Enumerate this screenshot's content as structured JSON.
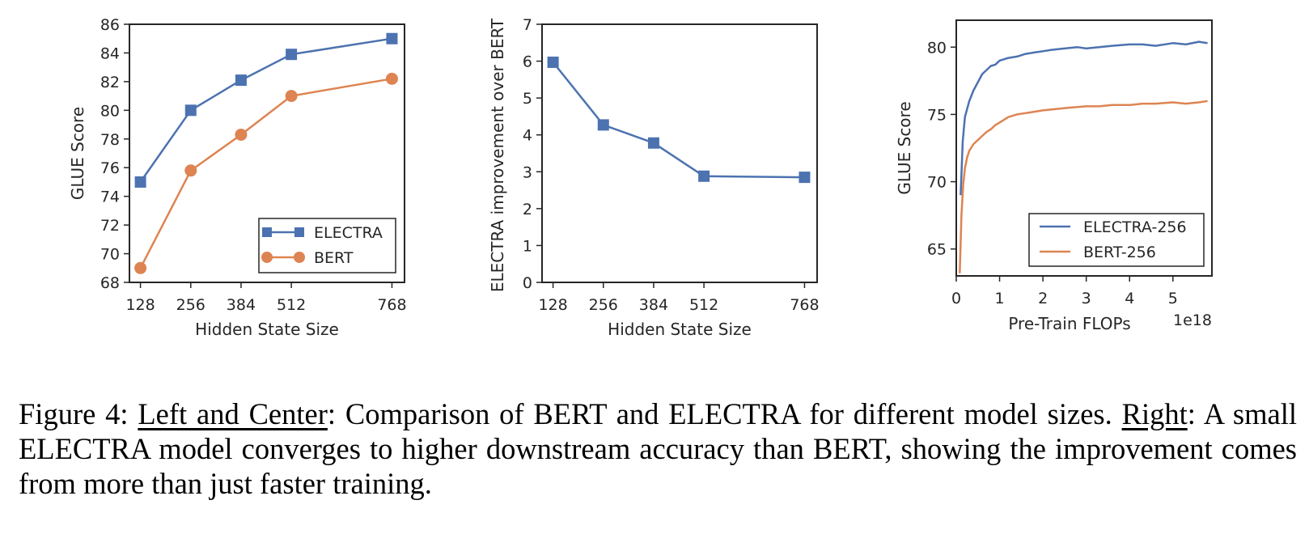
{
  "chart_data": [
    {
      "type": "line",
      "xlabel": "Hidden State Size",
      "ylabel": "GLUE Score",
      "x": [
        128,
        256,
        384,
        512,
        768
      ],
      "xticks": [
        "128",
        "256",
        "384",
        "512",
        "768"
      ],
      "xlim": [
        100,
        800
      ],
      "ylim": [
        68,
        86
      ],
      "yticks": [
        "68",
        "70",
        "72",
        "74",
        "76",
        "78",
        "80",
        "82",
        "84",
        "86"
      ],
      "legend_position": "lower-right",
      "series": [
        {
          "name": "ELECTRA",
          "color": "#4c72b0",
          "marker": "square",
          "values": [
            75.0,
            80.0,
            82.1,
            83.9,
            85.0
          ]
        },
        {
          "name": "BERT",
          "color": "#dd8452",
          "marker": "circle",
          "values": [
            69.0,
            75.8,
            78.3,
            81.0,
            82.2
          ]
        }
      ]
    },
    {
      "type": "line",
      "xlabel": "Hidden State Size",
      "ylabel": "ELECTRA improvement over BERT",
      "x": [
        128,
        256,
        384,
        512,
        768
      ],
      "xticks": [
        "128",
        "256",
        "384",
        "512",
        "768"
      ],
      "xlim": [
        100,
        800
      ],
      "ylim": [
        0,
        7
      ],
      "yticks": [
        "0",
        "1",
        "2",
        "3",
        "4",
        "5",
        "6",
        "7"
      ],
      "series": [
        {
          "name": "ELECTRA improvement",
          "color": "#4c72b0",
          "marker": "square",
          "values": [
            5.97,
            4.27,
            3.78,
            2.88,
            2.85
          ]
        }
      ]
    },
    {
      "type": "line",
      "xlabel": "Pre-Train FLOPs",
      "xscale_label": "1e18",
      "ylabel": "GLUE Score",
      "xlim": [
        0,
        5.9
      ],
      "ylim": [
        63,
        82
      ],
      "xticks": [
        "0",
        "1",
        "2",
        "3",
        "4",
        "5"
      ],
      "yticks": [
        "65",
        "70",
        "75",
        "80"
      ],
      "legend_position": "lower-right",
      "series": [
        {
          "name": "ELECTRA-256",
          "color": "#4c72b0",
          "x": [
            0.1,
            0.15,
            0.2,
            0.3,
            0.4,
            0.5,
            0.6,
            0.7,
            0.8,
            0.9,
            1.0,
            1.2,
            1.4,
            1.6,
            1.8,
            2.0,
            2.2,
            2.5,
            2.8,
            3.0,
            3.3,
            3.6,
            4.0,
            4.3,
            4.6,
            5.0,
            5.3,
            5.6,
            5.8
          ],
          "values": [
            69.0,
            73.0,
            74.8,
            76.0,
            76.8,
            77.4,
            78.0,
            78.3,
            78.6,
            78.7,
            79.0,
            79.2,
            79.3,
            79.5,
            79.6,
            79.7,
            79.8,
            79.9,
            80.0,
            79.9,
            80.0,
            80.1,
            80.2,
            80.2,
            80.1,
            80.3,
            80.2,
            80.4,
            80.3
          ]
        },
        {
          "name": "BERT-256",
          "color": "#dd8452",
          "x": [
            0.08,
            0.12,
            0.16,
            0.2,
            0.25,
            0.3,
            0.4,
            0.5,
            0.6,
            0.7,
            0.8,
            0.9,
            1.0,
            1.2,
            1.4,
            1.6,
            1.8,
            2.0,
            2.3,
            2.6,
            3.0,
            3.3,
            3.6,
            4.0,
            4.3,
            4.6,
            5.0,
            5.3,
            5.6,
            5.8
          ],
          "values": [
            63.2,
            67.5,
            69.8,
            71.0,
            71.8,
            72.3,
            72.8,
            73.1,
            73.4,
            73.7,
            73.9,
            74.2,
            74.4,
            74.8,
            75.0,
            75.1,
            75.2,
            75.3,
            75.4,
            75.5,
            75.6,
            75.6,
            75.7,
            75.7,
            75.8,
            75.8,
            75.9,
            75.8,
            75.9,
            76.0
          ]
        }
      ]
    }
  ],
  "caption": {
    "prefix": "Figure 4: ",
    "left_center": "Left and Center",
    "part1": ": Comparison of BERT and ELECTRA for different model sizes. ",
    "right": "Right",
    "part2": ": A small ELECTRA model converges to higher downstream accuracy than BERT, showing the improvement comes from more than just faster training."
  }
}
